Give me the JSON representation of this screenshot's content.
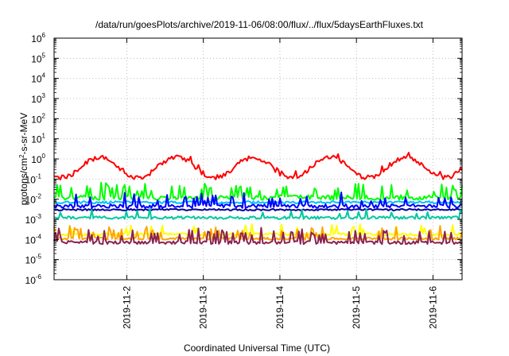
{
  "chart_data": {
    "type": "line",
    "title": "/data/run/goesPlots/archive/2019-11-06/08:00/flux/../flux/5daysEarthFluxes.txt",
    "xlabel": "Coordinated Universal Time (UTC)",
    "ylabel": {
      "pre": "protons/cm",
      "sup": "2",
      "post": "-s-sr-MeV"
    },
    "y_scale": "log",
    "ylim_exp": [
      -6,
      6
    ],
    "y_tick_base": "10",
    "y_ticks_exp": [
      "-6",
      "-5",
      "-4",
      "-3",
      "-2",
      "-1",
      "0",
      "1",
      "2",
      "3",
      "4",
      "5",
      "6"
    ],
    "xlim_days": [
      1.05,
      6.38
    ],
    "x_ticks": [
      {
        "day": 2,
        "label": "2019-11-2"
      },
      {
        "day": 3,
        "label": "2019-11-3"
      },
      {
        "day": 4,
        "label": "2019-11-4"
      },
      {
        "day": 5,
        "label": "2019-11-5"
      },
      {
        "day": 6,
        "label": "2019-11-6"
      }
    ],
    "grid": true,
    "series": [
      {
        "color": "#ff0000",
        "base": 0.15,
        "amp_log": 1.0,
        "period_days": 1.0,
        "phase_day": 1.65,
        "noise_log": 0.12,
        "spike_prob": 0.02,
        "spike_log": 0.3
      },
      {
        "color": "#00ff00",
        "base": 0.012,
        "amp_log": 0.0,
        "period_days": 1.0,
        "phase_day": 0.0,
        "noise_log": 0.12,
        "spike_prob": 0.16,
        "spike_log": 0.7
      },
      {
        "color": "#00c0ff",
        "base": 0.007,
        "amp_log": 0.0,
        "period_days": 1.0,
        "phase_day": 0.0,
        "noise_log": 0.06,
        "spike_prob": 0.0,
        "spike_log": 0.0
      },
      {
        "color": "#0000ff",
        "base": 0.0045,
        "amp_log": 0.0,
        "period_days": 1.0,
        "phase_day": 0.0,
        "noise_log": 0.1,
        "spike_prob": 0.13,
        "spike_log": 0.6
      },
      {
        "color": "#0000a0",
        "base": 0.003,
        "amp_log": 0.0,
        "period_days": 1.0,
        "phase_day": 0.0,
        "noise_log": 0.04,
        "spike_prob": 0.0,
        "spike_log": 0.0
      },
      {
        "color": "#00c8a0",
        "base": 0.0012,
        "amp_log": 0.0,
        "period_days": 1.0,
        "phase_day": 0.0,
        "noise_log": 0.07,
        "spike_prob": 0.06,
        "spike_log": 0.4
      },
      {
        "color": "#ffff00",
        "base": 0.00018,
        "amp_log": 0.0,
        "period_days": 1.0,
        "phase_day": 0.0,
        "noise_log": 0.06,
        "spike_prob": 0.12,
        "spike_log": 0.5
      },
      {
        "color": "#ffa500",
        "base": 0.00011,
        "amp_log": 0.0,
        "period_days": 1.0,
        "phase_day": 0.0,
        "noise_log": 0.06,
        "spike_prob": 0.16,
        "spike_log": 0.6
      },
      {
        "color": "#8b2252",
        "base": 7e-05,
        "amp_log": 0.0,
        "period_days": 1.0,
        "phase_day": 0.0,
        "noise_log": 0.08,
        "spike_prob": 0.2,
        "spike_log": 0.7
      }
    ]
  }
}
